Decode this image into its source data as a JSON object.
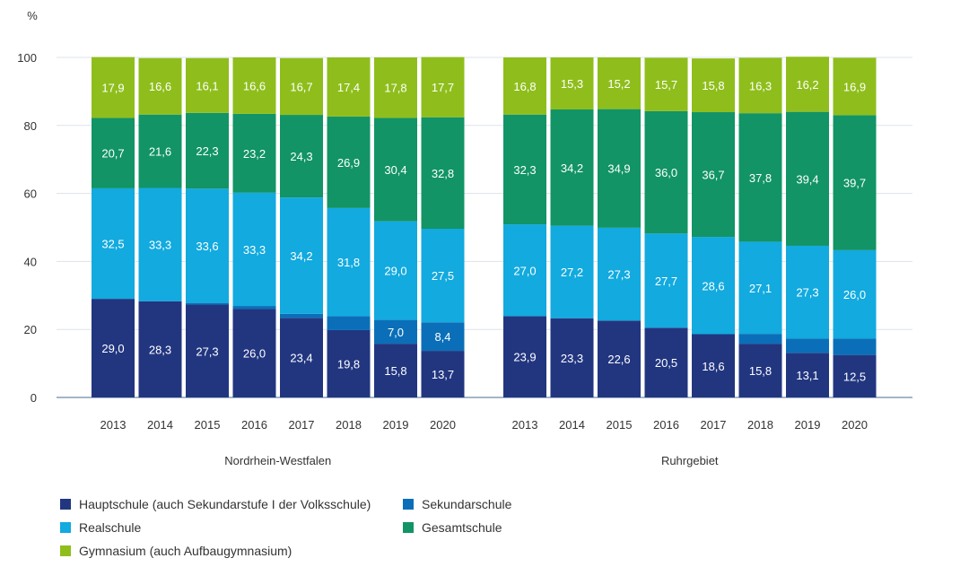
{
  "chart_data": {
    "type": "bar",
    "stacked": true,
    "percent_symbol": "%",
    "ylim": [
      0,
      100
    ],
    "yticks": [
      0,
      20,
      40,
      60,
      80,
      100
    ],
    "categories": [
      "2013",
      "2014",
      "2015",
      "2016",
      "2017",
      "2018",
      "2019",
      "2020"
    ],
    "groups": [
      {
        "label": "Nordrhein-Westfalen",
        "series": [
          {
            "key": "hauptschule",
            "values": [
              29.0,
              28.3,
              27.3,
              26.0,
              23.4,
              19.8,
              15.8,
              13.7
            ],
            "labels": [
              "29,0",
              "28,3",
              "27,3",
              "26,0",
              "23,4",
              "19,8",
              "15,8",
              "13,7"
            ]
          },
          {
            "key": "sekundarschule",
            "values": [
              0,
              0,
              0.5,
              0.9,
              1.2,
              4.1,
              7.0,
              8.4
            ],
            "labels": [
              "",
              "",
              "",
              "",
              "",
              "",
              "7,0",
              "8,4"
            ]
          },
          {
            "key": "realschule",
            "values": [
              32.5,
              33.3,
              33.6,
              33.3,
              34.2,
              31.8,
              29.0,
              27.5
            ],
            "labels": [
              "32,5",
              "33,3",
              "33,6",
              "33,3",
              "34,2",
              "31,8",
              "29,0",
              "27,5"
            ]
          },
          {
            "key": "gesamtschule",
            "values": [
              20.7,
              21.6,
              22.3,
              23.2,
              24.3,
              26.9,
              30.4,
              32.8
            ],
            "labels": [
              "20,7",
              "21,6",
              "22,3",
              "23,2",
              "24,3",
              "26,9",
              "30,4",
              "32,8"
            ]
          },
          {
            "key": "gymnasium",
            "values": [
              17.9,
              16.6,
              16.1,
              16.6,
              16.7,
              17.4,
              17.8,
              17.7
            ],
            "labels": [
              "17,9",
              "16,6",
              "16,1",
              "16,6",
              "16,7",
              "17,4",
              "17,8",
              "17,7"
            ]
          }
        ]
      },
      {
        "label": "Ruhrgebiet",
        "series": [
          {
            "key": "hauptschule",
            "values": [
              23.9,
              23.3,
              22.6,
              20.5,
              18.6,
              15.8,
              13.1,
              12.5
            ],
            "labels": [
              "23,9",
              "23,3",
              "22,6",
              "20,5",
              "18,6",
              "15,8",
              "13,1",
              "12,5"
            ]
          },
          {
            "key": "sekundarschule",
            "values": [
              0,
              0,
              0,
              0,
              0,
              2.9,
              4.2,
              4.8
            ],
            "labels": [
              "",
              "",
              "",
              "",
              "",
              "",
              "",
              ""
            ]
          },
          {
            "key": "realschule",
            "values": [
              27.0,
              27.2,
              27.3,
              27.7,
              28.6,
              27.1,
              27.3,
              26.0
            ],
            "labels": [
              "27,0",
              "27,2",
              "27,3",
              "27,7",
              "28,6",
              "27,1",
              "27,3",
              "26,0"
            ]
          },
          {
            "key": "gesamtschule",
            "values": [
              32.3,
              34.2,
              34.9,
              36.0,
              36.7,
              37.8,
              39.4,
              39.7
            ],
            "labels": [
              "32,3",
              "34,2",
              "34,9",
              "36,0",
              "36,7",
              "37,8",
              "39,4",
              "39,7"
            ]
          },
          {
            "key": "gymnasium",
            "values": [
              16.8,
              15.3,
              15.2,
              15.7,
              15.8,
              16.3,
              16.2,
              16.9
            ],
            "labels": [
              "16,8",
              "15,3",
              "15,2",
              "15,7",
              "15,8",
              "16,3",
              "16,2",
              "16,9"
            ]
          }
        ]
      }
    ],
    "series_info": [
      {
        "key": "hauptschule",
        "name": "Hauptschule (auch Sekundarstufe I der Volksschule)",
        "color": "#223680"
      },
      {
        "key": "sekundarschule",
        "name": "Sekundarschule",
        "color": "#0a6fb8"
      },
      {
        "key": "realschule",
        "name": "Realschule",
        "color": "#12aadf"
      },
      {
        "key": "gesamtschule",
        "name": "Gesamtschule",
        "color": "#129466"
      },
      {
        "key": "gymnasium",
        "name": "Gymnasium (auch Aufbaugymnasium)",
        "color": "#8fbe1c"
      }
    ],
    "legend_position": "bottom",
    "grid": true
  }
}
